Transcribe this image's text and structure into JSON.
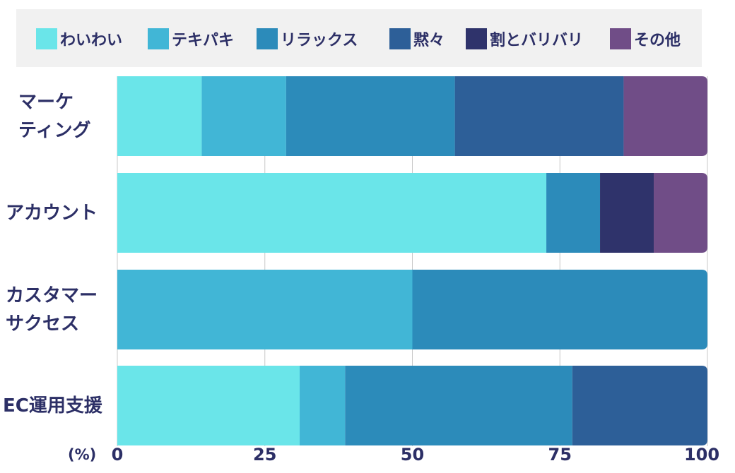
{
  "chart_data": {
    "type": "bar",
    "orientation": "horizontal",
    "stacked": true,
    "unit": "(%)",
    "xlim": [
      0,
      100
    ],
    "xticks": [
      "0",
      "25",
      "50",
      "75",
      "100"
    ],
    "grid": true,
    "legend_position": "top",
    "categories": [
      [
        "マーケ",
        "ティング"
      ],
      [
        "アカウント"
      ],
      [
        "カスタマー",
        "サクセス"
      ],
      [
        "EC運用支援"
      ]
    ],
    "series": [
      {
        "name": "わいわい",
        "color": "#6ae5e9",
        "values": [
          14.3,
          72.7,
          0,
          30.9
        ]
      },
      {
        "name": "テキパキ",
        "color": "#41b6d6",
        "values": [
          14.3,
          0,
          50,
          7.7
        ]
      },
      {
        "name": "リラックス",
        "color": "#2c8bba",
        "values": [
          28.6,
          9.1,
          50,
          38.5
        ]
      },
      {
        "name": "黙々",
        "color": "#2d5f98",
        "values": [
          28.6,
          0,
          0,
          22.9
        ]
      },
      {
        "name": "割とバリバリ",
        "color": "#2f336b",
        "values": [
          0,
          9.1,
          0,
          0
        ]
      },
      {
        "name": "その他",
        "color": "#704d87",
        "values": [
          14.2,
          9.1,
          0,
          0
        ]
      }
    ]
  }
}
